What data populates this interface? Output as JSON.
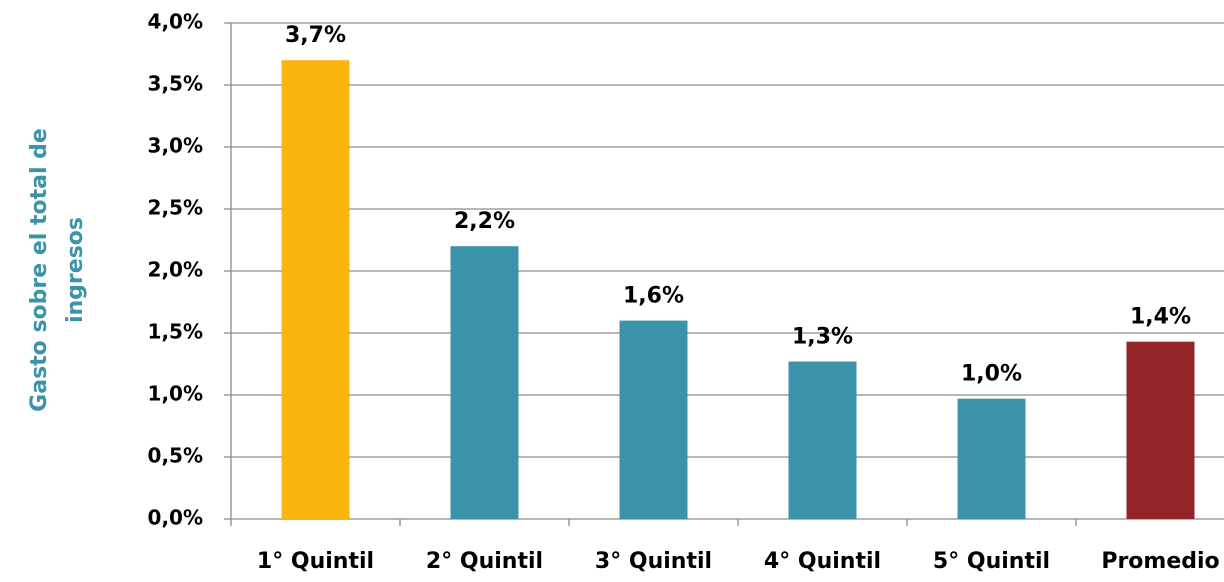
{
  "chart_data": {
    "type": "bar",
    "y_label": [
      "Gasto sobre el total de",
      "ingresos"
    ],
    "categories": [
      "1° Quintil",
      "2° Quintil",
      "3° Quintil",
      "4° Quintil",
      "5° Quintil",
      "Promedio"
    ],
    "values": [
      3.7,
      2.2,
      1.6,
      1.27,
      0.97,
      1.43
    ],
    "value_labels": [
      "3,7%",
      "2,2%",
      "1,6%",
      "1,3%",
      "1,0%",
      "1,4%"
    ],
    "colors": [
      "#fbb50f",
      "#3a93a8",
      "#3a93a8",
      "#3a93a8",
      "#3a93a8",
      "#922428"
    ],
    "ylim": [
      0,
      4
    ],
    "yticks": [
      {
        "value": 0,
        "label": "0,0%"
      },
      {
        "value": 0.5,
        "label": "0,5%"
      },
      {
        "value": 1,
        "label": "1,0%"
      },
      {
        "value": 1.5,
        "label": "1,5%"
      },
      {
        "value": 2,
        "label": "2,0%"
      },
      {
        "value": 2.5,
        "label": "2,5%"
      },
      {
        "value": 3,
        "label": "3,0%"
      },
      {
        "value": 3.5,
        "label": "3,5%"
      },
      {
        "value": 4,
        "label": "4,0%"
      }
    ],
    "grid": true
  }
}
